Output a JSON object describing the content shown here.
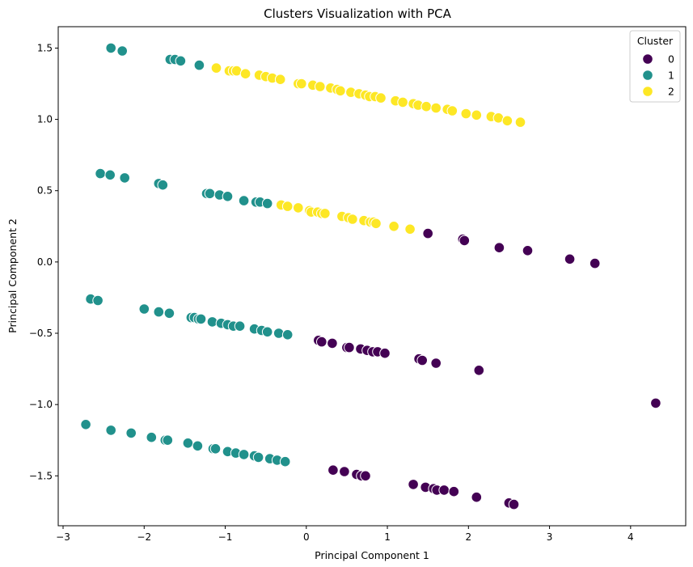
{
  "chart_data": {
    "type": "scatter",
    "title": "Clusters Visualization with PCA",
    "xlabel": "Principal Component 1",
    "ylabel": "Principal Component 2",
    "xlim": [
      -3.06,
      4.68
    ],
    "ylim": [
      -1.85,
      1.65
    ],
    "xticks": [
      -3,
      -2,
      -1,
      0,
      1,
      2,
      3,
      4
    ],
    "yticks": [
      -1.5,
      -1.0,
      -0.5,
      0.0,
      0.5,
      1.0,
      1.5
    ],
    "grid": false,
    "legend": {
      "title": "Cluster",
      "placement": "top-right"
    },
    "series": [
      {
        "name": "0",
        "color": "#440154",
        "points": [
          [
            1.5,
            0.2
          ],
          [
            1.93,
            0.16
          ],
          [
            1.95,
            0.15
          ],
          [
            2.38,
            0.1
          ],
          [
            2.73,
            0.08
          ],
          [
            3.25,
            0.02
          ],
          [
            3.56,
            -0.01
          ],
          [
            0.15,
            -0.55
          ],
          [
            0.19,
            -0.56
          ],
          [
            0.32,
            -0.57
          ],
          [
            0.5,
            -0.6
          ],
          [
            0.53,
            -0.6
          ],
          [
            0.67,
            -0.61
          ],
          [
            0.75,
            -0.62
          ],
          [
            0.82,
            -0.63
          ],
          [
            0.88,
            -0.63
          ],
          [
            0.97,
            -0.64
          ],
          [
            1.39,
            -0.68
          ],
          [
            1.43,
            -0.69
          ],
          [
            1.6,
            -0.71
          ],
          [
            2.13,
            -0.76
          ],
          [
            4.31,
            -0.99
          ],
          [
            0.33,
            -1.46
          ],
          [
            0.47,
            -1.47
          ],
          [
            0.62,
            -1.49
          ],
          [
            0.68,
            -1.5
          ],
          [
            0.73,
            -1.5
          ],
          [
            1.32,
            -1.56
          ],
          [
            1.47,
            -1.58
          ],
          [
            1.57,
            -1.59
          ],
          [
            1.61,
            -1.6
          ],
          [
            1.7,
            -1.6
          ],
          [
            1.82,
            -1.61
          ],
          [
            2.1,
            -1.65
          ],
          [
            2.5,
            -1.69
          ],
          [
            2.56,
            -1.7
          ]
        ]
      },
      {
        "name": "1",
        "color": "#21918c",
        "points": [
          [
            -2.41,
            1.5
          ],
          [
            -2.27,
            1.48
          ],
          [
            -1.68,
            1.42
          ],
          [
            -1.62,
            1.42
          ],
          [
            -1.55,
            1.41
          ],
          [
            -1.32,
            1.38
          ],
          [
            -2.54,
            0.62
          ],
          [
            -2.42,
            0.61
          ],
          [
            -2.24,
            0.59
          ],
          [
            -1.82,
            0.55
          ],
          [
            -1.77,
            0.54
          ],
          [
            -1.23,
            0.48
          ],
          [
            -1.19,
            0.48
          ],
          [
            -1.07,
            0.47
          ],
          [
            -0.97,
            0.46
          ],
          [
            -0.77,
            0.43
          ],
          [
            -0.62,
            0.42
          ],
          [
            -0.57,
            0.42
          ],
          [
            -0.48,
            0.41
          ],
          [
            -2.66,
            -0.26
          ],
          [
            -2.57,
            -0.27
          ],
          [
            -2.0,
            -0.33
          ],
          [
            -1.82,
            -0.35
          ],
          [
            -1.69,
            -0.36
          ],
          [
            -1.42,
            -0.39
          ],
          [
            -1.38,
            -0.39
          ],
          [
            -1.33,
            -0.4
          ],
          [
            -1.3,
            -0.4
          ],
          [
            -1.16,
            -0.42
          ],
          [
            -1.05,
            -0.43
          ],
          [
            -0.97,
            -0.44
          ],
          [
            -0.9,
            -0.45
          ],
          [
            -0.82,
            -0.45
          ],
          [
            -0.64,
            -0.47
          ],
          [
            -0.55,
            -0.48
          ],
          [
            -0.48,
            -0.49
          ],
          [
            -0.34,
            -0.5
          ],
          [
            -0.23,
            -0.51
          ],
          [
            -2.72,
            -1.14
          ],
          [
            -2.41,
            -1.18
          ],
          [
            -2.16,
            -1.2
          ],
          [
            -1.91,
            -1.23
          ],
          [
            -1.74,
            -1.25
          ],
          [
            -1.71,
            -1.25
          ],
          [
            -1.46,
            -1.27
          ],
          [
            -1.34,
            -1.29
          ],
          [
            -1.15,
            -1.31
          ],
          [
            -1.12,
            -1.31
          ],
          [
            -0.97,
            -1.33
          ],
          [
            -0.87,
            -1.34
          ],
          [
            -0.77,
            -1.35
          ],
          [
            -0.64,
            -1.36
          ],
          [
            -0.59,
            -1.37
          ],
          [
            -0.45,
            -1.38
          ],
          [
            -0.36,
            -1.39
          ],
          [
            -0.26,
            -1.4
          ]
        ]
      },
      {
        "name": "2",
        "color": "#fde725",
        "points": [
          [
            -1.11,
            1.36
          ],
          [
            -0.95,
            1.34
          ],
          [
            -0.9,
            1.34
          ],
          [
            -0.86,
            1.34
          ],
          [
            -0.75,
            1.32
          ],
          [
            -0.58,
            1.31
          ],
          [
            -0.5,
            1.3
          ],
          [
            -0.42,
            1.29
          ],
          [
            -0.32,
            1.28
          ],
          [
            -0.1,
            1.25
          ],
          [
            -0.06,
            1.25
          ],
          [
            0.08,
            1.24
          ],
          [
            0.17,
            1.23
          ],
          [
            0.3,
            1.22
          ],
          [
            0.38,
            1.21
          ],
          [
            0.42,
            1.2
          ],
          [
            0.55,
            1.19
          ],
          [
            0.65,
            1.18
          ],
          [
            0.73,
            1.17
          ],
          [
            0.78,
            1.16
          ],
          [
            0.85,
            1.16
          ],
          [
            0.92,
            1.15
          ],
          [
            1.1,
            1.13
          ],
          [
            1.19,
            1.12
          ],
          [
            1.32,
            1.11
          ],
          [
            1.38,
            1.1
          ],
          [
            1.48,
            1.09
          ],
          [
            1.6,
            1.08
          ],
          [
            1.74,
            1.07
          ],
          [
            1.8,
            1.06
          ],
          [
            1.97,
            1.04
          ],
          [
            2.1,
            1.03
          ],
          [
            2.28,
            1.02
          ],
          [
            2.37,
            1.01
          ],
          [
            2.48,
            0.99
          ],
          [
            2.64,
            0.98
          ],
          [
            -0.31,
            0.4
          ],
          [
            -0.23,
            0.39
          ],
          [
            -0.1,
            0.38
          ],
          [
            0.04,
            0.36
          ],
          [
            0.06,
            0.35
          ],
          [
            0.14,
            0.35
          ],
          [
            0.19,
            0.34
          ],
          [
            0.23,
            0.34
          ],
          [
            0.44,
            0.32
          ],
          [
            0.52,
            0.31
          ],
          [
            0.57,
            0.3
          ],
          [
            0.71,
            0.29
          ],
          [
            0.79,
            0.28
          ],
          [
            0.83,
            0.28
          ],
          [
            0.86,
            0.27
          ],
          [
            1.08,
            0.25
          ],
          [
            1.28,
            0.23
          ]
        ]
      }
    ]
  }
}
